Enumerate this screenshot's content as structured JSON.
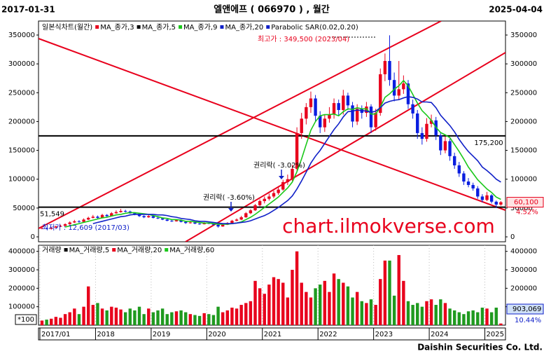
{
  "chart_data": {
    "type": "candlestick",
    "title": "엘앤에프 ( 066970 ) , 월간",
    "start_date": "2017-01-31",
    "end_date": "2025-04-04",
    "chart_label": "일본식차트(월간)",
    "categories": [
      "2017/01",
      null,
      null,
      null,
      null,
      null,
      null,
      null,
      null,
      null,
      null,
      null,
      "2018",
      null,
      null,
      null,
      null,
      null,
      null,
      null,
      null,
      null,
      null,
      null,
      "2019",
      null,
      null,
      null,
      null,
      null,
      null,
      null,
      null,
      null,
      null,
      null,
      "2020",
      null,
      null,
      null,
      null,
      null,
      null,
      null,
      null,
      null,
      null,
      null,
      "2021",
      null,
      null,
      null,
      null,
      null,
      null,
      null,
      null,
      null,
      null,
      null,
      "2022",
      null,
      null,
      null,
      null,
      null,
      null,
      null,
      null,
      null,
      null,
      null,
      "2023",
      null,
      null,
      null,
      null,
      null,
      null,
      null,
      null,
      null,
      null,
      null,
      "2024",
      null,
      null,
      null,
      null,
      null,
      null,
      null,
      null,
      null,
      null,
      null,
      "2025",
      null,
      null,
      null
    ],
    "candles": [
      [
        14000,
        16500,
        13500,
        15000
      ],
      [
        15000,
        16000,
        13000,
        14000
      ],
      [
        14000,
        17000,
        12609,
        16000
      ],
      [
        16000,
        19500,
        15500,
        18000
      ],
      [
        18000,
        21000,
        17000,
        19000
      ],
      [
        19000,
        23500,
        18500,
        22000
      ],
      [
        22000,
        27000,
        21000,
        25000
      ],
      [
        25000,
        29500,
        24000,
        27000
      ],
      [
        27000,
        29000,
        24500,
        26000
      ],
      [
        26000,
        32000,
        25500,
        30000
      ],
      [
        30000,
        35000,
        29000,
        33000
      ],
      [
        33000,
        38000,
        32000,
        35000
      ],
      [
        35000,
        37000,
        31000,
        33000
      ],
      [
        33000,
        40000,
        32500,
        38000
      ],
      [
        38000,
        39500,
        34000,
        36000
      ],
      [
        36000,
        43000,
        35500,
        41000
      ],
      [
        41000,
        46000,
        40000,
        43000
      ],
      [
        43000,
        48500,
        42000,
        45000
      ],
      [
        45000,
        47000,
        42500,
        44000
      ],
      [
        44000,
        45500,
        40000,
        41000
      ],
      [
        41000,
        42500,
        37500,
        39000
      ],
      [
        39000,
        40000,
        34500,
        36000
      ],
      [
        36000,
        37500,
        32500,
        34000
      ],
      [
        34000,
        38000,
        33000,
        36000
      ],
      [
        36000,
        37000,
        32000,
        33000
      ],
      [
        33000,
        35000,
        31000,
        32000
      ],
      [
        32000,
        33500,
        29000,
        30000
      ],
      [
        30000,
        31500,
        27000,
        28000
      ],
      [
        28000,
        29500,
        26000,
        27000
      ],
      [
        27000,
        30500,
        26500,
        29000
      ],
      [
        29000,
        30000,
        25000,
        26000
      ],
      [
        26000,
        27000,
        22500,
        24000
      ],
      [
        24000,
        26500,
        23000,
        25000
      ],
      [
        25000,
        26000,
        22000,
        23000
      ],
      [
        23000,
        24000,
        21000,
        22000
      ],
      [
        22000,
        25500,
        21500,
        24000
      ],
      [
        24000,
        25000,
        22000,
        23000
      ],
      [
        23000,
        24000,
        20000,
        21000
      ],
      [
        21000,
        22000,
        16000,
        18000
      ],
      [
        18000,
        22500,
        17500,
        21000
      ],
      [
        21000,
        25500,
        20500,
        24000
      ],
      [
        24000,
        29500,
        23500,
        28000
      ],
      [
        28000,
        32000,
        27000,
        30000
      ],
      [
        30000,
        36500,
        29000,
        34000
      ],
      [
        34000,
        43000,
        33000,
        41000
      ],
      [
        41000,
        48000,
        39500,
        46000
      ],
      [
        46000,
        57000,
        45000,
        55000
      ],
      [
        55000,
        65000,
        53000,
        62000
      ],
      [
        62000,
        70000,
        58000,
        66000
      ],
      [
        66000,
        75000,
        63000,
        70000
      ],
      [
        70000,
        80000,
        67000,
        76000
      ],
      [
        76000,
        88000,
        73000,
        82000
      ],
      [
        82000,
        99000,
        80000,
        95000
      ],
      [
        95000,
        108000,
        90000,
        100000
      ],
      [
        100000,
        125000,
        97000,
        118000
      ],
      [
        118000,
        190000,
        115000,
        180000
      ],
      [
        180000,
        215000,
        170000,
        205000
      ],
      [
        205000,
        232000,
        195000,
        225000
      ],
      [
        225000,
        252000,
        215000,
        240000
      ],
      [
        240000,
        246000,
        200000,
        210000
      ],
      [
        210000,
        218000,
        180000,
        190000
      ],
      [
        190000,
        212000,
        182000,
        205000
      ],
      [
        205000,
        225000,
        198000,
        212000
      ],
      [
        212000,
        240000,
        205000,
        232000
      ],
      [
        232000,
        238000,
        210000,
        220000
      ],
      [
        220000,
        255000,
        212000,
        245000
      ],
      [
        245000,
        250000,
        220000,
        228000
      ],
      [
        228000,
        234000,
        190000,
        200000
      ],
      [
        200000,
        230000,
        194000,
        222000
      ],
      [
        222000,
        228000,
        205000,
        215000
      ],
      [
        215000,
        234000,
        208000,
        226000
      ],
      [
        226000,
        230000,
        180000,
        190000
      ],
      [
        190000,
        222000,
        184000,
        215000
      ],
      [
        215000,
        292000,
        210000,
        282000
      ],
      [
        282000,
        318000,
        270000,
        305000
      ],
      [
        305000,
        349500,
        262000,
        272000
      ],
      [
        272000,
        285000,
        235000,
        245000
      ],
      [
        245000,
        305000,
        238000,
        256000
      ],
      [
        256000,
        280000,
        248000,
        266000
      ],
      [
        266000,
        272000,
        222000,
        230000
      ],
      [
        230000,
        238000,
        205000,
        214000
      ],
      [
        214000,
        220000,
        170000,
        180000
      ],
      [
        180000,
        190000,
        160000,
        170000
      ],
      [
        170000,
        206000,
        165000,
        196000
      ],
      [
        196000,
        212000,
        190000,
        202000
      ],
      [
        202000,
        208000,
        168000,
        176000
      ],
      [
        176000,
        182000,
        142000,
        150000
      ],
      [
        150000,
        174000,
        145000,
        166000
      ],
      [
        166000,
        170000,
        132000,
        140000
      ],
      [
        140000,
        146000,
        118000,
        124000
      ],
      [
        124000,
        130000,
        104000,
        110000
      ],
      [
        110000,
        114000,
        90000,
        96000
      ],
      [
        96000,
        102000,
        86000,
        90000
      ],
      [
        90000,
        94000,
        80000,
        84000
      ],
      [
        84000,
        88000,
        66000,
        70000
      ],
      [
        70000,
        74000,
        60000,
        64000
      ],
      [
        64000,
        78000,
        62000,
        72000
      ],
      [
        72000,
        74000,
        58000,
        61000
      ],
      [
        61000,
        63000,
        50000,
        56000
      ],
      [
        56000,
        62000,
        54000,
        60100
      ]
    ],
    "up_color": "#e8001c",
    "down_color": "#0a1ee0",
    "series": [
      {
        "name": "MA_종가,3",
        "color": "#e8001c"
      },
      {
        "name": "MA_종가,5",
        "color": "#000000"
      },
      {
        "name": "MA_종가,9",
        "color": "#19c819",
        "values": [
          null,
          null,
          null,
          null,
          null,
          17000,
          19000,
          21000,
          23000,
          25000,
          27000,
          29000,
          31000,
          33000,
          34000,
          36000,
          38000,
          39000,
          41000,
          42000,
          42000,
          41000,
          40000,
          39000,
          37000,
          35000,
          33000,
          32000,
          30000,
          30000,
          29000,
          27000,
          27000,
          26000,
          25000,
          24000,
          24000,
          23000,
          22000,
          22000,
          22000,
          23000,
          24000,
          26000,
          30000,
          34000,
          39000,
          45000,
          51000,
          57000,
          63000,
          69000,
          77000,
          85000,
          95000,
          113000,
          135000,
          160000,
          185000,
          200000,
          210000,
          212000,
          212000,
          213000,
          210000,
          217000,
          222000,
          221000,
          224000,
          222000,
          222000,
          213000,
          213000,
          225000,
          242000,
          248000,
          256000,
          262000,
          271000,
          262000,
          247000,
          232000,
          219000,
          211000,
          202000,
          190000,
          181000,
          177000,
          172000,
          160000,
          148000,
          135000,
          121000,
          110000,
          99000,
          91000,
          83000,
          77000,
          69000,
          65000
        ]
      },
      {
        "name": "MA_종가,20",
        "color": "#1020c8",
        "values": [
          null,
          null,
          null,
          null,
          null,
          null,
          null,
          null,
          null,
          null,
          null,
          23000,
          25000,
          27000,
          29000,
          31000,
          33000,
          35000,
          36000,
          38000,
          39000,
          39000,
          39000,
          39000,
          39000,
          38000,
          38000,
          37000,
          35000,
          34000,
          32000,
          31000,
          30000,
          28000,
          27000,
          27000,
          26000,
          25000,
          24000,
          23000,
          23000,
          23000,
          24000,
          25000,
          26000,
          28000,
          31000,
          34000,
          37000,
          41000,
          46000,
          51000,
          57000,
          63000,
          71000,
          83000,
          97000,
          112000,
          128000,
          140000,
          150000,
          162000,
          174000,
          186000,
          196000,
          208000,
          217000,
          218000,
          220000,
          219000,
          218000,
          216000,
          218000,
          224000,
          232000,
          235000,
          237000,
          238000,
          241000,
          243000,
          242000,
          239000,
          234000,
          234000,
          233000,
          224000,
          211000,
          202000,
          193000,
          182000,
          169000,
          158000,
          148000,
          140000,
          132000,
          121000,
          115000,
          108000,
          100000,
          95000
        ]
      },
      {
        "name": "Parabolic SAR(0.02,0.20)",
        "color": "#1020c8"
      }
    ],
    "ylim": [
      -8500,
      374300
    ],
    "yticks": [
      0,
      50000,
      100000,
      150000,
      200000,
      250000,
      300000,
      350000
    ],
    "hlines": [
      {
        "value": 175200,
        "label": "175,200"
      },
      {
        "value": 51549,
        "label": "51,549"
      }
    ],
    "annotations": {
      "high": "최고가 : 349,500 (2023/04)",
      "low": "최저가 : 12,609 (2017/03)",
      "rights_1": "권리락( -3.60%)",
      "rights_2": "권리락( -3.02%)"
    },
    "last_price": {
      "value": 60100,
      "label": "60,100",
      "change": "4.52%"
    },
    "volume": {
      "name": "거래량",
      "up_color": "#e8001c",
      "down_color": "#1f9a1f",
      "values": [
        25000,
        30000,
        35000,
        45000,
        40000,
        60000,
        70000,
        90000,
        60000,
        100000,
        210000,
        110000,
        120000,
        90000,
        80000,
        100000,
        95000,
        85000,
        70000,
        90000,
        80000,
        100000,
        60000,
        90000,
        70000,
        80000,
        90000,
        60000,
        70000,
        75000,
        80000,
        70000,
        60000,
        55000,
        50000,
        65000,
        60000,
        55000,
        100000,
        70000,
        80000,
        95000,
        90000,
        110000,
        120000,
        130000,
        240000,
        200000,
        170000,
        220000,
        260000,
        250000,
        230000,
        150000,
        300000,
        400000,
        230000,
        180000,
        150000,
        200000,
        220000,
        240000,
        180000,
        280000,
        250000,
        230000,
        210000,
        150000,
        180000,
        130000,
        120000,
        140000,
        110000,
        250000,
        350000,
        350000,
        160000,
        380000,
        240000,
        130000,
        110000,
        120000,
        100000,
        130000,
        140000,
        110000,
        140000,
        120000,
        90000,
        80000,
        70000,
        60000,
        75000,
        80000,
        70000,
        95000,
        90000,
        70000,
        95000,
        9000
      ],
      "ylim": [
        0,
        433000
      ],
      "yticks": [
        100000,
        200000,
        300000,
        400000
      ],
      "ma_legend": [
        {
          "name": "MA_거래량,5",
          "color": "#000000"
        },
        {
          "name": "MA_거래량,20",
          "color": "#e8001c"
        },
        {
          "name": "MA_거래량,60",
          "color": "#19c819"
        }
      ],
      "unit": "*100",
      "last_label": "903,069",
      "last_change": "10.44%"
    },
    "watermark": "chart.ilmokverse.com",
    "footer": "Daishin Securities Co. Ltd."
  }
}
